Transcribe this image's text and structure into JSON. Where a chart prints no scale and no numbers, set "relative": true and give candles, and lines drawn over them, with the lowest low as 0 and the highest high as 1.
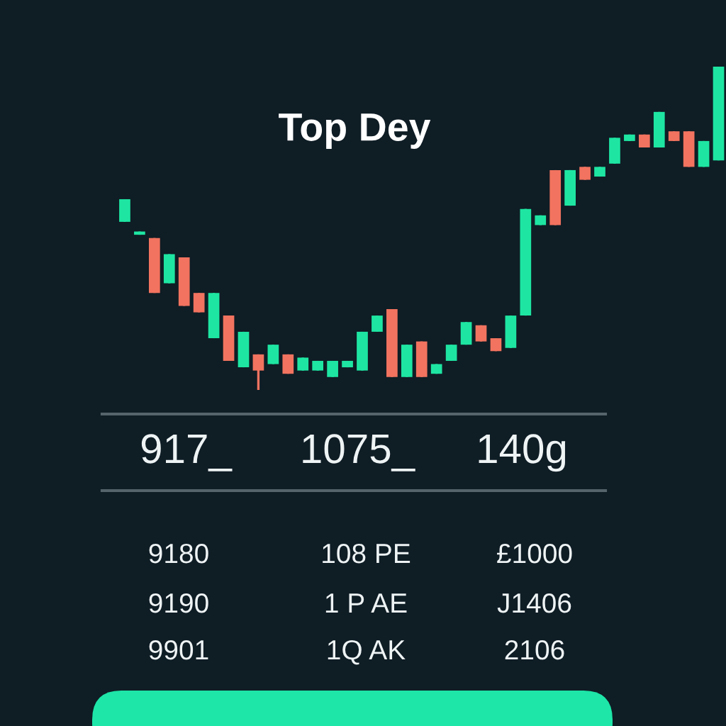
{
  "chart_data": {
    "type": "candlestick",
    "title": "Top Dey",
    "relative": true,
    "tick_labels": false,
    "categories": [
      null,
      null,
      null,
      null,
      null,
      null,
      null,
      null,
      null,
      null,
      null,
      null,
      null,
      null,
      null,
      null,
      null,
      null,
      null,
      null,
      null,
      null,
      null,
      null,
      null,
      null,
      null,
      null,
      null,
      null,
      null,
      null,
      null,
      null,
      null,
      null,
      null,
      null,
      null,
      null,
      null
    ],
    "ohlc": [
      [
        0.52,
        0.59,
        0.52,
        0.59
      ],
      [
        0.48,
        0.49,
        0.48,
        0.49
      ],
      [
        0.47,
        0.47,
        0.3,
        0.3
      ],
      [
        0.33,
        0.42,
        0.33,
        0.42
      ],
      [
        0.41,
        0.41,
        0.26,
        0.26
      ],
      [
        0.3,
        0.3,
        0.24,
        0.24
      ],
      [
        0.16,
        0.3,
        0.16,
        0.3
      ],
      [
        0.23,
        0.23,
        0.09,
        0.09
      ],
      [
        0.07,
        0.18,
        0.07,
        0.18
      ],
      [
        0.11,
        0.11,
        0,
        0.06
      ],
      [
        0.08,
        0.14,
        0.08,
        0.14
      ],
      [
        0.11,
        0.11,
        0.05,
        0.05
      ],
      [
        0.06,
        0.1,
        0.06,
        0.1
      ],
      [
        0.06,
        0.09,
        0.06,
        0.09
      ],
      [
        0.04,
        0.09,
        0.04,
        0.09
      ],
      [
        0.07,
        0.09,
        0.07,
        0.09
      ],
      [
        0.06,
        0.18,
        0.06,
        0.18
      ],
      [
        0.18,
        0.23,
        0.18,
        0.23
      ],
      [
        0.25,
        0.25,
        0.04,
        0.04
      ],
      [
        0.04,
        0.14,
        0.04,
        0.14
      ],
      [
        0.15,
        0.15,
        0.04,
        0.04
      ],
      [
        0.05,
        0.08,
        0.05,
        0.08
      ],
      [
        0.09,
        0.14,
        0.09,
        0.14
      ],
      [
        0.14,
        0.21,
        0.14,
        0.21
      ],
      [
        0.2,
        0.2,
        0.15,
        0.15
      ],
      [
        0.16,
        0.16,
        0.12,
        0.12
      ],
      [
        0.13,
        0.23,
        0.13,
        0.23
      ],
      [
        0.23,
        0.56,
        0.23,
        0.56
      ],
      [
        0.51,
        0.54,
        0.51,
        0.54
      ],
      [
        0.68,
        0.68,
        0.51,
        0.51
      ],
      [
        0.57,
        0.68,
        0.57,
        0.68
      ],
      [
        0.69,
        0.69,
        0.65,
        0.65
      ],
      [
        0.66,
        0.69,
        0.66,
        0.69
      ],
      [
        0.7,
        0.78,
        0.7,
        0.78
      ],
      [
        0.77,
        0.79,
        0.77,
        0.79
      ],
      [
        0.79,
        0.79,
        0.75,
        0.75
      ],
      [
        0.75,
        0.86,
        0.75,
        0.86
      ],
      [
        0.8,
        0.8,
        0.77,
        0.77
      ],
      [
        0.8,
        0.8,
        0.69,
        0.69
      ],
      [
        0.69,
        0.77,
        0.69,
        0.77
      ],
      [
        0.71,
        1.0,
        0.71,
        1.0
      ]
    ],
    "colors": [
      "#1ee6a2",
      "#1ee6a2",
      "#f2735f",
      "#1ee6a2",
      "#f2735f",
      "#f2735f",
      "#1ee6a2",
      "#f2735f",
      "#1ee6a2",
      "#f2735f",
      "#1ee6a2",
      "#f2735f",
      "#1ee6a2",
      "#1ee6a2",
      "#1ee6a2",
      "#1ee6a2",
      "#1ee6a2",
      "#1ee6a2",
      "#f2735f",
      "#1ee6a2",
      "#f2735f",
      "#1ee6a2",
      "#1ee6a2",
      "#1ee6a2",
      "#f2735f",
      "#f2735f",
      "#1ee6a2",
      "#1ee6a2",
      "#1ee6a2",
      "#f2735f",
      "#1ee6a2",
      "#f2735f",
      "#1ee6a2",
      "#1ee6a2",
      "#1ee6a2",
      "#f2735f",
      "#1ee6a2",
      "#f2735f",
      "#f2735f",
      "#1ee6a2",
      "#1ee6a2"
    ],
    "annotations": [
      "917_",
      "1075_",
      "140g",
      "9180",
      "108 PE",
      "£1000",
      "9190",
      "1 P AE",
      "J1406",
      "9901",
      "1Q AK",
      "2106"
    ]
  }
}
